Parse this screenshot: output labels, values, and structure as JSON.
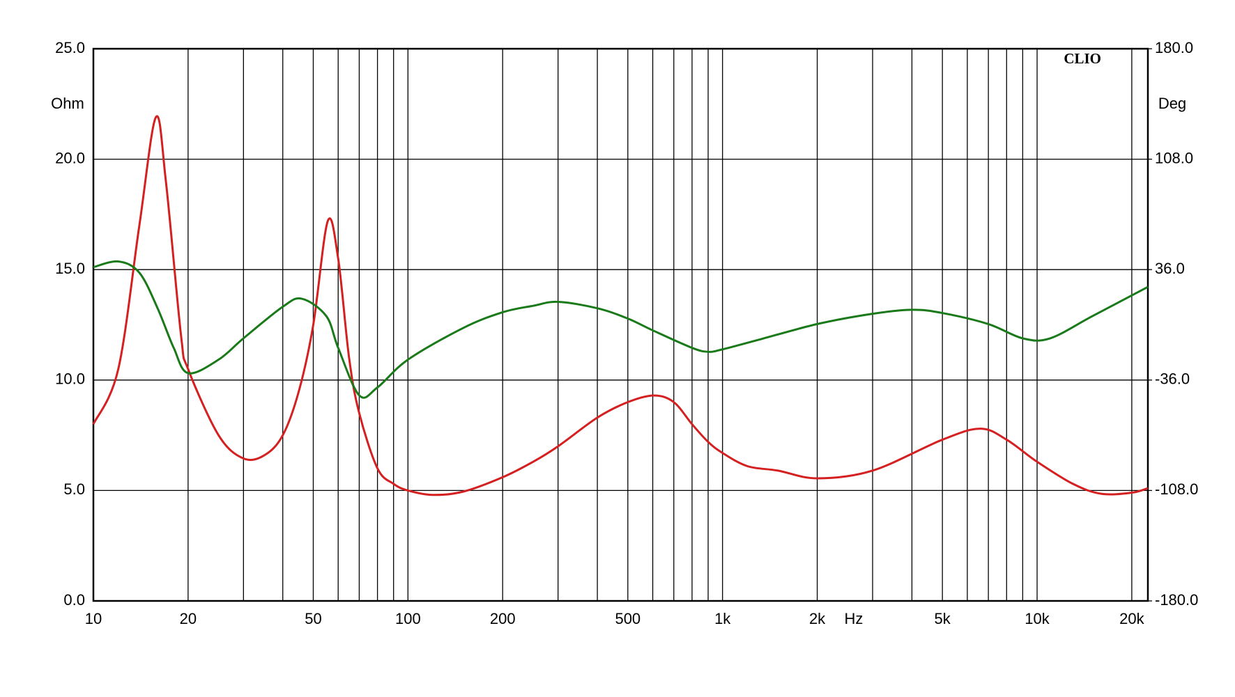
{
  "chart_data": {
    "type": "line",
    "brand": "CLIO",
    "ylabel": "Ohm",
    "y2label": "Deg",
    "xlabel": "Hz",
    "xscale": "log",
    "grid": true,
    "xlim": [
      10,
      22500
    ],
    "xticks": [
      10,
      20,
      50,
      100,
      200,
      500,
      {
        "value": 1000,
        "label": "1k"
      },
      {
        "value": 2000,
        "label": "2k"
      },
      {
        "value": 5000,
        "label": "5k"
      },
      {
        "value": 10000,
        "label": "10k"
      },
      {
        "value": 20000,
        "label": "20k"
      }
    ],
    "x_minor_ticks": [
      30,
      40,
      60,
      70,
      80,
      90,
      300,
      400,
      600,
      700,
      800,
      900,
      3000,
      4000,
      6000,
      7000,
      8000,
      9000
    ],
    "ylim": [
      0,
      25
    ],
    "yticks": [
      {
        "value": 0,
        "label": "0.0"
      },
      {
        "value": 5,
        "label": "5.0"
      },
      {
        "value": 10,
        "label": "10.0"
      },
      {
        "value": 15,
        "label": "15.0"
      },
      {
        "value": 20,
        "label": "20.0"
      },
      {
        "value": 25,
        "label": "25.0"
      }
    ],
    "y2lim": [
      -180,
      180
    ],
    "y2ticks": [
      {
        "value": -180,
        "label": "-180.0"
      },
      {
        "value": -108,
        "label": "-108.0"
      },
      {
        "value": -36,
        "label": "-36.0"
      },
      {
        "value": 36,
        "label": "36.0"
      },
      {
        "value": 108,
        "label": "108.0"
      },
      {
        "value": 180,
        "label": "180.0"
      }
    ],
    "series": [
      {
        "color": "#d42020",
        "x": [
          10,
          12,
          14,
          15.8,
          17,
          19,
          20,
          25,
          30,
          35,
          40,
          45,
          50,
          55.6,
          60,
          65,
          70,
          80,
          90,
          100,
          120,
          150,
          200,
          250,
          300,
          400,
          500,
          605,
          700,
          800,
          900,
          1000,
          1200,
          1500,
          2000,
          3000,
          5000,
          6600,
          8000,
          10000,
          13000,
          16000,
          20000,
          22500
        ],
        "values": [
          8.0,
          10.5,
          17,
          21.9,
          19,
          12,
          10.5,
          7.5,
          6.45,
          6.6,
          7.5,
          9.5,
          12.5,
          17.2,
          15.5,
          11,
          8.5,
          6.0,
          5.3,
          5.0,
          4.8,
          4.95,
          5.6,
          6.3,
          7.0,
          8.3,
          9.0,
          9.3,
          9.0,
          8.0,
          7.2,
          6.7,
          6.1,
          5.9,
          5.55,
          5.9,
          7.3,
          7.8,
          7.3,
          6.3,
          5.3,
          4.85,
          4.9,
          5.1
        ]
      },
      {
        "color": "#1a7a1a",
        "axis": "y2",
        "x": [
          10,
          12,
          14,
          16,
          18,
          20,
          25,
          30,
          40,
          46,
          55,
          60,
          70,
          80,
          100,
          150,
          200,
          250,
          300,
          400,
          500,
          600,
          800,
          900,
          1000,
          1300,
          2000,
          3000,
          4000,
          5000,
          7000,
          9000,
          11000,
          15000,
          22500
        ],
        "values": [
          37.6,
          41.3,
          34,
          10.8,
          -15,
          -31.5,
          -22.7,
          -8.8,
          11.8,
          17,
          5.7,
          -15,
          -46,
          -40.8,
          -22.7,
          -2,
          8.2,
          12.4,
          15,
          10.8,
          4.1,
          -3.6,
          -15,
          -17.6,
          -16,
          -9.8,
          0.5,
          7.2,
          9.8,
          7.7,
          0.5,
          -8.8,
          -8.8,
          5.7,
          24.7
        ]
      }
    ]
  }
}
